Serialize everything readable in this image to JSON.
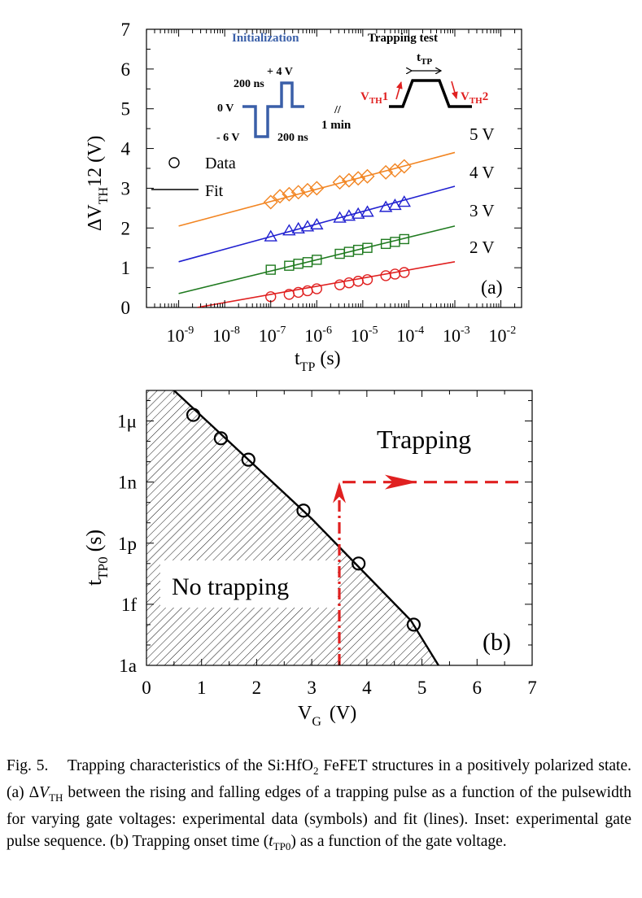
{
  "chart_data": [
    {
      "type": "line",
      "panel_label": "(a)",
      "xlabel_main": "t",
      "xlabel_sub": "TP",
      "xlabel_unit": "(s)",
      "ylabel_pre": "ΔV",
      "ylabel_sub": "TH",
      "ylabel_post": "12 (V)",
      "xscale": "log",
      "xlim_exp": [
        -9.7,
        -1.55
      ],
      "ylim": [
        0,
        7
      ],
      "x_tick_exponents": [
        "-9",
        "-8",
        "-7",
        "-6",
        "-5",
        "-4",
        "-3",
        "-2"
      ],
      "y_ticks": [
        "0",
        "1",
        "2",
        "3",
        "4",
        "5",
        "6",
        "7"
      ],
      "legend": {
        "data_label": "Data",
        "fit_label": "Fit",
        "placement": "middle-left"
      },
      "series": [
        {
          "name": "5 V",
          "color": "#f28522",
          "marker": "diamond",
          "x_exp": [
            -7,
            -6.8,
            -6.6,
            -6.4,
            -6.2,
            -6,
            -5.5,
            -5.3,
            -5.1,
            -4.9,
            -4.5,
            -4.3,
            -4.1
          ],
          "y": [
            2.65,
            2.8,
            2.85,
            2.9,
            2.95,
            3.0,
            3.15,
            3.2,
            3.25,
            3.3,
            3.4,
            3.45,
            3.55
          ],
          "fit_x_exp": [
            -9.0,
            -3.0
          ],
          "fit_y": [
            2.05,
            3.9
          ]
        },
        {
          "name": "4 V",
          "color": "#2020d0",
          "marker": "triangle",
          "x_exp": [
            -7,
            -6.6,
            -6.4,
            -6.2,
            -6,
            -5.5,
            -5.3,
            -5.1,
            -4.9,
            -4.5,
            -4.3,
            -4.1
          ],
          "y": [
            1.78,
            1.93,
            1.98,
            2.03,
            2.08,
            2.25,
            2.3,
            2.35,
            2.4,
            2.52,
            2.57,
            2.65
          ],
          "fit_x_exp": [
            -9.0,
            -3.0
          ],
          "fit_y": [
            1.15,
            3.05
          ]
        },
        {
          "name": "3 V",
          "color": "#1f7a1f",
          "marker": "square",
          "x_exp": [
            -7,
            -6.6,
            -6.4,
            -6.2,
            -6,
            -5.5,
            -5.3,
            -5.1,
            -4.9,
            -4.5,
            -4.3,
            -4.1
          ],
          "y": [
            0.95,
            1.05,
            1.1,
            1.14,
            1.2,
            1.35,
            1.4,
            1.45,
            1.5,
            1.6,
            1.65,
            1.72
          ],
          "fit_x_exp": [
            -9.0,
            -3.0
          ],
          "fit_y": [
            0.35,
            2.05
          ]
        },
        {
          "name": "2 V",
          "color": "#e02020",
          "marker": "circle",
          "x_exp": [
            -7,
            -6.6,
            -6.4,
            -6.2,
            -6,
            -5.5,
            -5.3,
            -5.1,
            -4.9,
            -4.5,
            -4.3,
            -4.1
          ],
          "y": [
            0.27,
            0.33,
            0.38,
            0.42,
            0.47,
            0.57,
            0.62,
            0.66,
            0.7,
            0.8,
            0.84,
            0.88
          ],
          "fit_x_exp": [
            -8.6,
            -3.0
          ],
          "fit_y": [
            0.0,
            1.15
          ]
        }
      ],
      "inset": {
        "init_title": "Initialization",
        "trap_title": "Trapping test",
        "label_plus4": "+ 4 V",
        "label_200ns_top": "200 ns",
        "label_0v": "0 V",
        "label_minus6": "- 6 V",
        "label_200ns_bottom": "200 ns",
        "label_break": "//",
        "label_1min": "1 min",
        "label_ttp_main": "t",
        "label_ttp_sub": "TP",
        "label_vth1_main": "V",
        "label_vth1_sub": "TH",
        "label_vth1_num": "1",
        "label_vth2_main": "V",
        "label_vth2_sub": "TH",
        "label_vth2_num": "2",
        "blue": "#3a5fa8",
        "red": "#e02020"
      }
    },
    {
      "type": "line",
      "panel_label": "(b)",
      "xlabel_main": "V",
      "xlabel_sub": "G",
      "xlabel_unit": "(V)",
      "ylabel_main": "t",
      "ylabel_sub": "TP0",
      "ylabel_unit": "(s)",
      "xlim": [
        0,
        7
      ],
      "ylim_exp": [
        -18,
        -4.5
      ],
      "x_ticks": [
        "0",
        "1",
        "2",
        "3",
        "4",
        "5",
        "6",
        "7"
      ],
      "y_tick_labels": [
        {
          "label": "1a",
          "exp": -18
        },
        {
          "label": "1f",
          "exp": -15
        },
        {
          "label": "1p",
          "exp": -12
        },
        {
          "label": "1n",
          "exp": -9
        },
        {
          "label": "1μ",
          "exp": -6
        }
      ],
      "data": {
        "x": [
          0.85,
          1.35,
          1.85,
          2.85,
          3.85,
          4.85
        ],
        "y_exp": [
          -5.7,
          -6.85,
          -7.9,
          -10.4,
          -13.0,
          -16.0
        ]
      },
      "fit": {
        "x": [
          0.5,
          3.0,
          4.8,
          5.3
        ],
        "y_exp": [
          -4.5,
          -10.8,
          -15.8,
          -18.0
        ]
      },
      "region_no_trapping": "No trapping",
      "region_trapping": "Trapping",
      "threshold_vg": 3.5,
      "threshold_exp": -9.0,
      "arrow_color": "#e02020"
    }
  ],
  "caption": {
    "label": "Fig. 5.",
    "t1": "Trapping characteristics of the Si:HfO",
    "t1_sub": "2",
    "t2": " FeFET structures in a positively polarized state. (a) Δ",
    "t2_it": "V",
    "t2_sub": "TH",
    "t3": " between the rising and falling edges of a trapping pulse as a function of the pulsewidth for varying gate voltages: experimental data (symbols) and fit (lines). Inset: experimental gate pulse sequence. (b) Trapping onset time (",
    "t3_it": "t",
    "t3_sub": "TP0",
    "t4": ") as a function of the gate voltage."
  }
}
